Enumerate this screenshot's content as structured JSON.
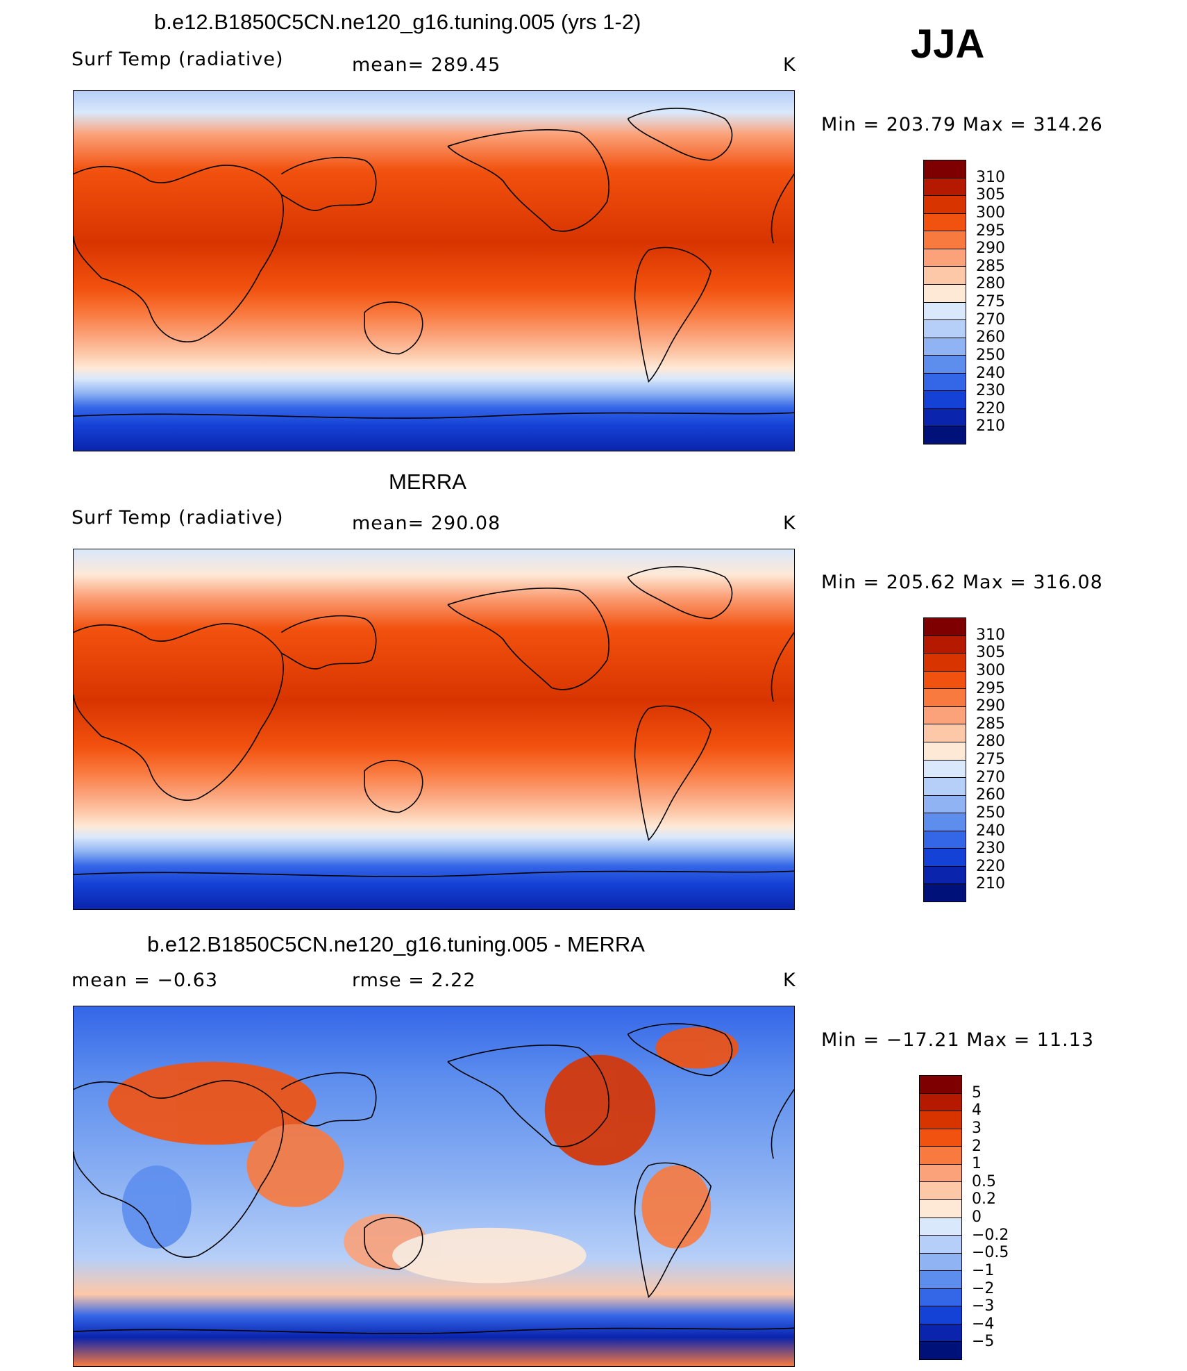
{
  "season": "JJA",
  "panels": [
    {
      "title": "b.e12.B1850C5CN.ne120_g16.tuning.005 (yrs 1-2)",
      "left_label": "Surf Temp (radiative)",
      "center_label": "mean= 289.45",
      "units": "K",
      "minmax": "Min = 203.79 Max = 314.26"
    },
    {
      "title": "MERRA",
      "left_label": "Surf Temp (radiative)",
      "center_label": "mean= 290.08",
      "units": "K",
      "minmax": "Min = 205.62 Max = 316.08"
    },
    {
      "title": "b.e12.B1850C5CN.ne120_g16.tuning.005 - MERRA",
      "left_label": "mean =    −0.63",
      "center_label": "rmse =     2.22",
      "units": "K",
      "minmax": "Min = −17.21 Max =   11.13"
    }
  ],
  "chart_data": [
    {
      "type": "heatmap",
      "title": "b.e12.B1850C5CN.ne120_g16.tuning.005 (yrs 1-2)",
      "variable": "Surf Temp (radiative)",
      "units": "K",
      "mean": 289.45,
      "min": 203.79,
      "max": 314.26,
      "colorbar_levels": [
        "310",
        "305",
        "300",
        "295",
        "290",
        "285",
        "280",
        "275",
        "270",
        "260",
        "250",
        "240",
        "230",
        "220",
        "210"
      ],
      "colorbar_colors": [
        "#7f0000",
        "#b51a00",
        "#d83400",
        "#f2520f",
        "#f97a3f",
        "#fba27a",
        "#fdc8a8",
        "#fee9d7",
        "#d9e8fb",
        "#b6cff8",
        "#8fb3f3",
        "#5d8eee",
        "#3466e8",
        "#1542d6",
        "#0a24ad",
        "#00117a"
      ]
    },
    {
      "type": "heatmap",
      "title": "MERRA",
      "variable": "Surf Temp (radiative)",
      "units": "K",
      "mean": 290.08,
      "min": 205.62,
      "max": 316.08,
      "colorbar_levels": [
        "310",
        "305",
        "300",
        "295",
        "290",
        "285",
        "280",
        "275",
        "270",
        "260",
        "250",
        "240",
        "230",
        "220",
        "210"
      ],
      "colorbar_colors": [
        "#7f0000",
        "#b51a00",
        "#d83400",
        "#f2520f",
        "#f97a3f",
        "#fba27a",
        "#fdc8a8",
        "#fee9d7",
        "#d9e8fb",
        "#b6cff8",
        "#8fb3f3",
        "#5d8eee",
        "#3466e8",
        "#1542d6",
        "#0a24ad",
        "#00117a"
      ]
    },
    {
      "type": "heatmap",
      "title": "b.e12.B1850C5CN.ne120_g16.tuning.005 - MERRA",
      "units": "K",
      "mean": -0.63,
      "rmse": 2.22,
      "min": -17.21,
      "max": 11.13,
      "colorbar_levels": [
        "5",
        "4",
        "3",
        "2",
        "1",
        "0.5",
        "0.2",
        "0",
        "−0.2",
        "−0.5",
        "−1",
        "−2",
        "−3",
        "−4",
        "−5"
      ],
      "colorbar_colors": [
        "#7f0000",
        "#b51a00",
        "#d83400",
        "#f2520f",
        "#f97a3f",
        "#fba27a",
        "#fdc8a8",
        "#fee9d7",
        "#d9e8fb",
        "#b6cff8",
        "#8fb3f3",
        "#5d8eee",
        "#3466e8",
        "#1542d6",
        "#0a24ad",
        "#00117a"
      ]
    }
  ]
}
